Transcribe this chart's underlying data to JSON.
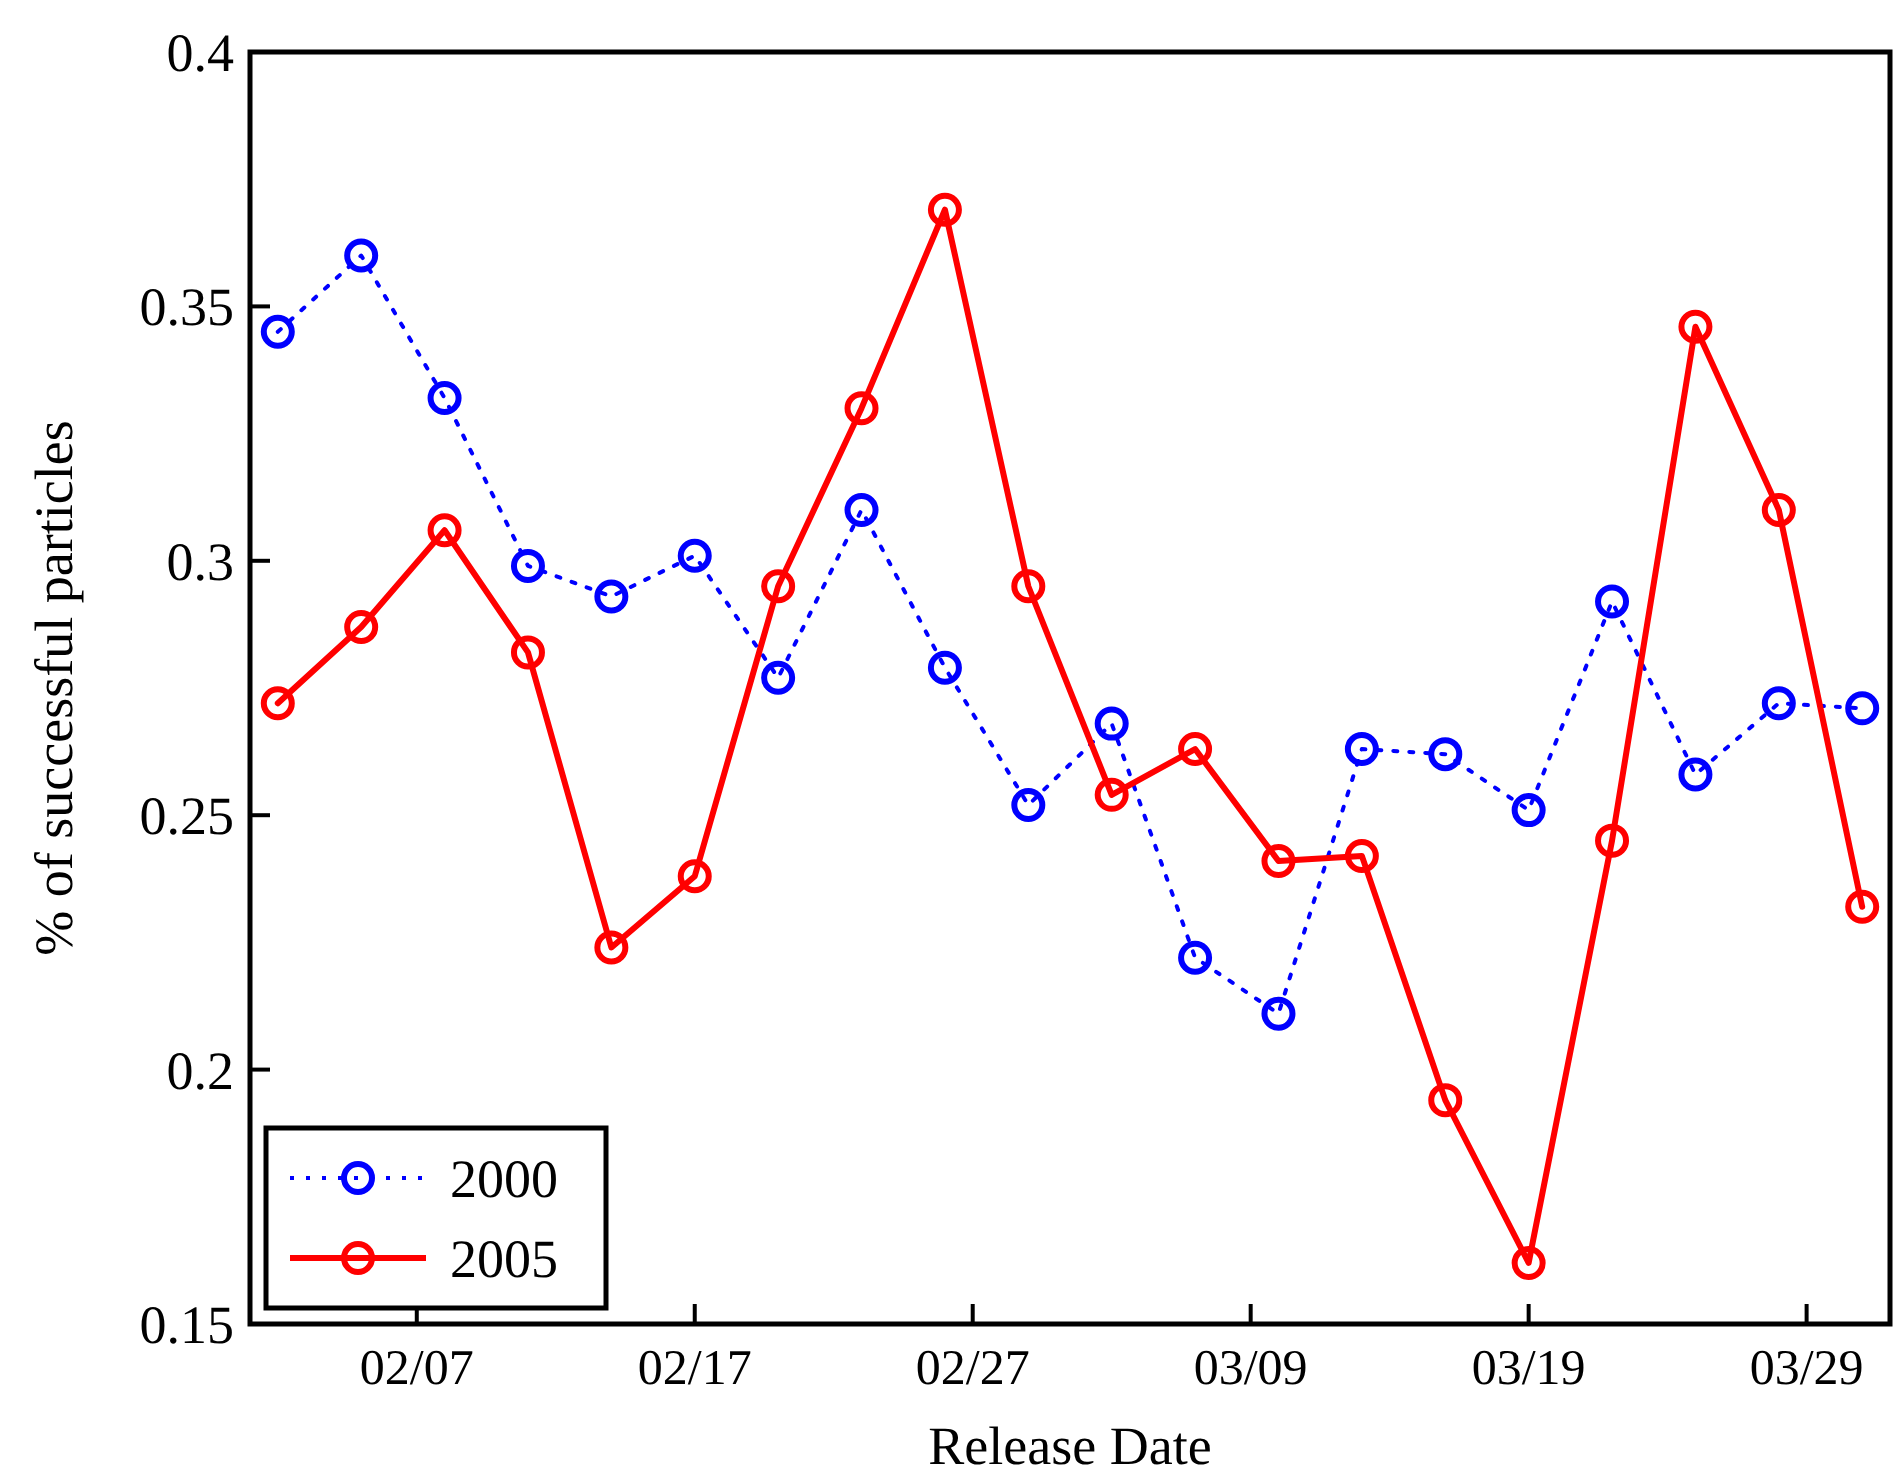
{
  "chart_data": {
    "type": "line",
    "xlabel": "Release Date",
    "ylabel": "% of successful particles",
    "x": [
      "--02-02",
      "--02-05",
      "--02-08",
      "--02-11",
      "--02-14",
      "--02-17",
      "--02-20",
      "--02-23",
      "--02-26",
      "--03-01",
      "--03-04",
      "--03-07",
      "--03-10",
      "--03-13",
      "--03-16",
      "--03-19",
      "--03-22",
      "--03-25",
      "--03-28",
      "--03-31"
    ],
    "series": [
      {
        "name": "2000",
        "color": "#0000ff",
        "line_style": "dotted",
        "values": [
          0.345,
          0.36,
          0.332,
          0.299,
          0.293,
          0.301,
          0.277,
          0.31,
          0.279,
          0.252,
          0.268,
          0.222,
          0.211,
          0.263,
          0.262,
          0.251,
          0.292,
          0.258,
          0.272,
          0.271
        ]
      },
      {
        "name": "2005",
        "color": "#ff0000",
        "line_style": "solid",
        "values": [
          0.272,
          0.287,
          0.306,
          0.282,
          0.224,
          0.238,
          0.295,
          0.33,
          0.369,
          0.295,
          0.254,
          0.263,
          0.241,
          0.242,
          0.194,
          0.162,
          0.245,
          0.346,
          0.31,
          0.232
        ]
      }
    ],
    "marker": "circle",
    "grid": false,
    "legend": "bottom left",
    "xlim": [
      "--02-01",
      "--04-01"
    ],
    "xticks": [
      {
        "value": "--02-07",
        "label": "02/07"
      },
      {
        "value": "--02-17",
        "label": "02/17"
      },
      {
        "value": "--02-27",
        "label": "02/27"
      },
      {
        "value": "--03-09",
        "label": "03/09"
      },
      {
        "value": "--03-19",
        "label": "03/19"
      },
      {
        "value": "--03-29",
        "label": "03/29"
      }
    ],
    "ylim": [
      0.15,
      0.4
    ],
    "yticks": [
      0.15,
      0.2,
      0.25,
      0.3,
      0.35,
      0.4
    ]
  }
}
